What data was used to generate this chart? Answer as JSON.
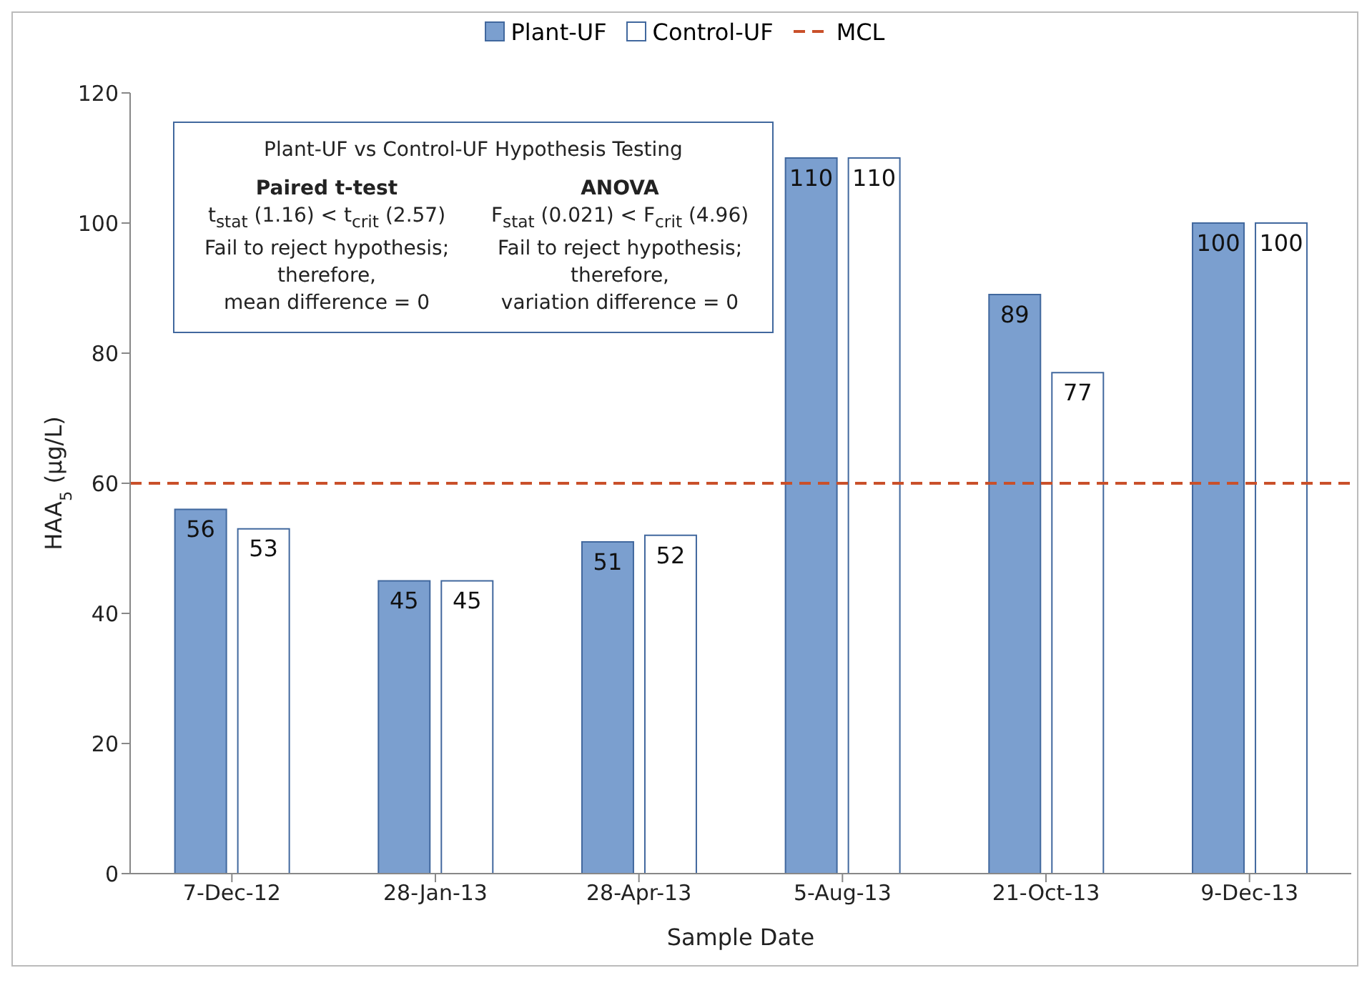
{
  "chart_data": {
    "type": "bar",
    "xlabel": "Sample Date",
    "ylabel": "HAA$_{5}$ (µg/L)",
    "categories": [
      "7-Dec-12",
      "28-Jan-13",
      "28-Apr-13",
      "5-Aug-13",
      "21-Oct-13",
      "9-Dec-13"
    ],
    "series": [
      {
        "name": "Plant-UF",
        "color": "#7b9fcf",
        "values": [
          56,
          45,
          51,
          110,
          89,
          100
        ]
      },
      {
        "name": "Control-UF",
        "color": "#ffffff",
        "values": [
          53,
          45,
          52,
          110,
          77,
          100
        ]
      }
    ],
    "ylim": [
      0,
      120
    ],
    "yticks": [
      0,
      20,
      40,
      60,
      80,
      100,
      120
    ],
    "grid": false,
    "legend": "top",
    "data_labels": true,
    "ref_lines": [
      {
        "axis": "y",
        "value": 60,
        "label": "MCL",
        "color": "#c9502a",
        "line_style": "dashed"
      }
    ],
    "annotations": [
      "Plant-UF vs Control-UF Hypothesis Testing",
      "Paired t-test",
      "t$_{stat}$ (1.16) < t$_{crit}$ (2.57)",
      "Fail to reject hypothesis;",
      "therefore,",
      "mean difference = 0",
      "ANOVA",
      "F$_{stat}$ (0.021) < F$_{crit}$ (4.96)",
      "Fail to reject hypothesis;",
      "therefore,",
      "variation difference = 0"
    ]
  }
}
